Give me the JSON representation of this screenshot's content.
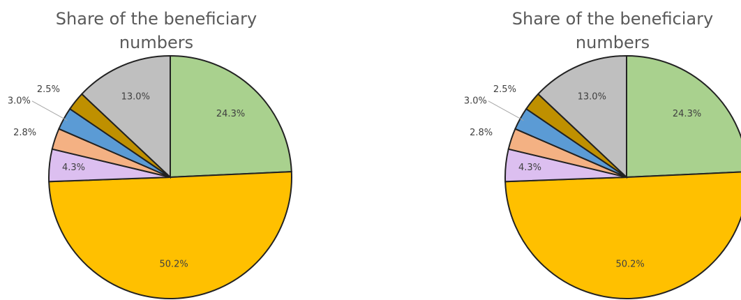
{
  "chart_data": [
    {
      "type": "pie",
      "title": "Share of the beneficiary numbers",
      "values": [
        24.3,
        50.2,
        4.3,
        2.8,
        3.0,
        2.5,
        13.0
      ],
      "value_labels": [
        "24.3%",
        "50.2%",
        "4.3%",
        "2.8%",
        "3.0%",
        "2.5%",
        "13.0%"
      ],
      "colors": [
        "#a9d18e",
        "#ffc000",
        "#dcbff0",
        "#f4b183",
        "#5b9bd5",
        "#bf9000",
        "#bfbfbf"
      ]
    },
    {
      "type": "pie",
      "title": "Share of the beneficiary numbers",
      "values": [
        24.3,
        50.2,
        4.3,
        2.8,
        3.0,
        2.5,
        13.0
      ],
      "value_labels": [
        "24.3%",
        "50.2%",
        "4.3%",
        "2.8%",
        "3.0%",
        "2.5%",
        "13.0%"
      ],
      "colors": [
        "#a9d18e",
        "#ffc000",
        "#dcbff0",
        "#f4b183",
        "#5b9bd5",
        "#bf9000",
        "#bfbfbf"
      ]
    }
  ]
}
